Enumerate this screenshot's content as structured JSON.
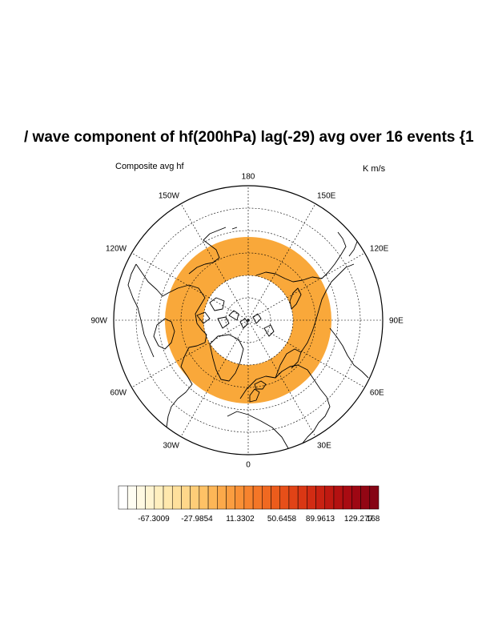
{
  "plot": {
    "title": "/ wave component of hf(200hPa) lag(-29) avg over 16 events {1",
    "left_label": "Composite avg hf",
    "right_label": "K m/s"
  },
  "map": {
    "projection": "north-polar-stereographic",
    "ring_fill_color": "#F9A83A",
    "ring_fill_color_inner": "#FBB44A",
    "grid_style": "dashed",
    "longitude_labels": [
      {
        "text": "180",
        "lon": 180
      },
      {
        "text": "150E",
        "lon": 150
      },
      {
        "text": "120E",
        "lon": 120
      },
      {
        "text": "90E",
        "lon": 90
      },
      {
        "text": "60E",
        "lon": 60
      },
      {
        "text": "30E",
        "lon": 30
      },
      {
        "text": "0",
        "lon": 0
      },
      {
        "text": "30W",
        "lon": -30
      },
      {
        "text": "60W",
        "lon": -60
      },
      {
        "text": "90W",
        "lon": -90
      },
      {
        "text": "120W",
        "lon": -120
      },
      {
        "text": "150W",
        "lon": -150
      }
    ]
  },
  "colorbar": {
    "colors": [
      "#FFFFFF",
      "#FFFDF2",
      "#FFF9E2",
      "#FFF4D1",
      "#FFEFBF",
      "#FFE8AD",
      "#FFE09C",
      "#FFD78A",
      "#FECD78",
      "#FEC266",
      "#FDB657",
      "#FCA94A",
      "#FB9D40",
      "#F99036",
      "#F7832E",
      "#F47627",
      "#F06921",
      "#EC5C1C",
      "#E74F19",
      "#E14316",
      "#DA3714",
      "#D22C13",
      "#C92212",
      "#BF1911",
      "#B41111",
      "#A90B12",
      "#9E0713",
      "#920614",
      "#860515"
    ],
    "labels": [
      "-67.3009",
      "-27.9854",
      "11.3302",
      "50.6458",
      "89.9613",
      "129.277",
      "168"
    ]
  }
}
